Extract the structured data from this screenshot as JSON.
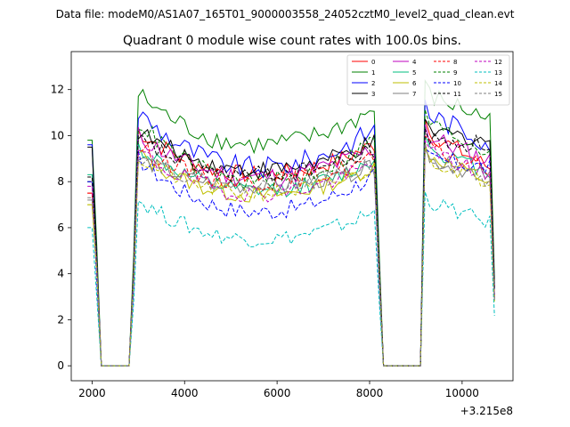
{
  "chart_data": {
    "type": "line",
    "suptitle": "Data file: modeM0/AS1A07_165T01_9000003558_24052cztM0_level2_quad_clean.evt",
    "title": "Quadrant 0 module wise count rates with 100.0s bins.",
    "xlabel": "",
    "ylabel": "",
    "x_offset_label": "+3.215e8",
    "xlim": [
      1550,
      11100
    ],
    "ylim": [
      -0.65,
      13.65
    ],
    "xticks": [
      2000,
      4000,
      6000,
      8000,
      10000
    ],
    "yticks": [
      0,
      2,
      4,
      6,
      8,
      10,
      12
    ],
    "legend_position": "top-right",
    "segments": [
      {
        "start": 1900,
        "end": 2000,
        "shape": "flat"
      },
      {
        "start": 2100,
        "end": 2100,
        "shape": "drop"
      },
      {
        "start": 2200,
        "end": 2800,
        "shape": "zero"
      },
      {
        "start": 2900,
        "end": 2900,
        "shape": "rise"
      },
      {
        "start": 3000,
        "end": 8100,
        "shape": "u"
      },
      {
        "start": 8200,
        "end": 8200,
        "shape": "drop"
      },
      {
        "start": 8300,
        "end": 9100,
        "shape": "zero"
      },
      {
        "start": 9200,
        "end": 10600,
        "shape": "decay"
      },
      {
        "start": 10700,
        "end": 10700,
        "shape": "end"
      }
    ],
    "series": [
      {
        "name": "0",
        "color": "#ff0000",
        "dashed": false,
        "start_level": 7.5,
        "peak": 10.2,
        "plateau": 8.3,
        "end_level": 8.6,
        "noise": 0.4
      },
      {
        "name": "1",
        "color": "#008000",
        "dashed": false,
        "start_level": 9.8,
        "peak": 11.8,
        "plateau": 9.6,
        "end_level": 10.7,
        "noise": 0.45
      },
      {
        "name": "2",
        "color": "#0000ff",
        "dashed": false,
        "start_level": 9.6,
        "peak": 11.0,
        "plateau": 8.6,
        "end_level": 9.7,
        "noise": 0.5
      },
      {
        "name": "3",
        "color": "#000000",
        "dashed": false,
        "start_level": 9.5,
        "peak": 10.2,
        "plateau": 8.5,
        "end_level": 9.8,
        "noise": 0.4
      },
      {
        "name": "4",
        "color": "#bf00bf",
        "dashed": false,
        "start_level": 8.0,
        "peak": 10.0,
        "plateau": 8.2,
        "end_level": 8.9,
        "noise": 0.45
      },
      {
        "name": "5",
        "color": "#00bf7f",
        "dashed": false,
        "start_level": 8.3,
        "peak": 9.5,
        "plateau": 7.6,
        "end_level": 8.4,
        "noise": 0.35
      },
      {
        "name": "6",
        "color": "#bfbf00",
        "dashed": false,
        "start_level": 7.0,
        "peak": 9.2,
        "plateau": 7.4,
        "end_level": 8.0,
        "noise": 0.35
      },
      {
        "name": "7",
        "color": "#7f7f7f",
        "dashed": false,
        "start_level": 7.2,
        "peak": 9.0,
        "plateau": 7.8,
        "end_level": 8.2,
        "noise": 0.35
      },
      {
        "name": "8",
        "color": "#ff0000",
        "dashed": true,
        "start_level": 7.5,
        "peak": 9.5,
        "plateau": 8.0,
        "end_level": 8.5,
        "noise": 0.4
      },
      {
        "name": "9",
        "color": "#008000",
        "dashed": true,
        "start_level": 8.0,
        "peak": 10.6,
        "plateau": 8.0,
        "end_level": 9.3,
        "noise": 0.4
      },
      {
        "name": "10",
        "color": "#0000ff",
        "dashed": true,
        "start_level": 8.0,
        "peak": 9.0,
        "plateau": 6.7,
        "end_level": 8.6,
        "noise": 0.4
      },
      {
        "name": "11",
        "color": "#000000",
        "dashed": true,
        "start_level": 8.2,
        "peak": 9.8,
        "plateau": 8.3,
        "end_level": 9.6,
        "noise": 0.4
      },
      {
        "name": "12",
        "color": "#bf00bf",
        "dashed": true,
        "start_level": 7.8,
        "peak": 9.3,
        "plateau": 7.5,
        "end_level": 8.3,
        "noise": 0.4
      },
      {
        "name": "13",
        "color": "#00bfbf",
        "dashed": true,
        "start_level": 6.0,
        "peak": 7.2,
        "plateau": 5.5,
        "end_level": 6.2,
        "noise": 0.35
      },
      {
        "name": "14",
        "color": "#bfbf00",
        "dashed": true,
        "start_level": 7.0,
        "peak": 9.0,
        "plateau": 7.5,
        "end_level": 8.0,
        "noise": 0.35
      },
      {
        "name": "15",
        "color": "#7f7f7f",
        "dashed": true,
        "start_level": 7.3,
        "peak": 9.2,
        "plateau": 7.8,
        "end_level": 8.0,
        "noise": 0.35
      }
    ]
  }
}
